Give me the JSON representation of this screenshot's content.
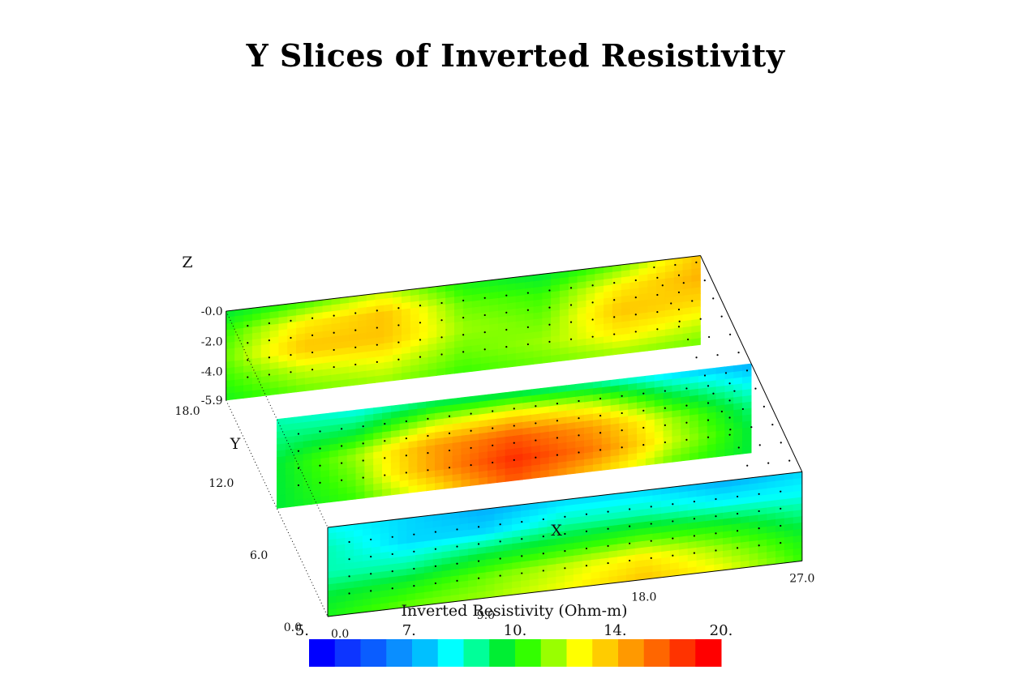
{
  "chart_data": {
    "type": "heatmap",
    "title": "Y Slices of Inverted Resistivity",
    "xlabel": "X",
    "ylabel": "Y",
    "zlabel": "Z",
    "x_ticks": [
      "0.0",
      "9.0",
      "18.0",
      "27.0"
    ],
    "y_ticks": [
      "0.0",
      "6.0",
      "12.0",
      "18.0"
    ],
    "z_ticks": [
      "-0.0",
      "-2.0",
      "-4.0",
      "-5.9"
    ],
    "xlim": [
      0,
      27
    ],
    "ylim": [
      0,
      18
    ],
    "zlim": [
      -5.9,
      0
    ],
    "slices": [
      {
        "y": 18,
        "x": [
          0,
          4.5,
          9,
          13.5,
          18,
          22.5,
          27
        ],
        "z": [
          0,
          -1.5,
          -3,
          -4.5,
          -5.9
        ],
        "values": [
          [
            9.5,
            10.5,
            12,
            10,
            9.5,
            11,
            14
          ],
          [
            10.5,
            13,
            14,
            11,
            10.5,
            13,
            14.5
          ],
          [
            11,
            14,
            14,
            11.5,
            11,
            14,
            13.5
          ],
          [
            10.5,
            12,
            12.5,
            11,
            11.5,
            13,
            12
          ],
          [
            10,
            11,
            11.5,
            10.5,
            11,
            11.5,
            11
          ]
        ]
      },
      {
        "y": 9,
        "x": [
          0,
          4.5,
          9,
          13.5,
          18,
          22.5,
          27
        ],
        "z": [
          0,
          -1.5,
          -3,
          -4.5,
          -5.9
        ],
        "values": [
          [
            8.5,
            8,
            9,
            9,
            8.5,
            7.5,
            7
          ],
          [
            9,
            9.5,
            12,
            13,
            12,
            9.5,
            8
          ],
          [
            9.5,
            11.5,
            15,
            17,
            15,
            11.5,
            9
          ],
          [
            9.5,
            11,
            15,
            18.5,
            16,
            12,
            9.5
          ],
          [
            9.5,
            10.5,
            13,
            17,
            14,
            11,
            9.5
          ]
        ]
      },
      {
        "y": 0,
        "x": [
          0,
          4.5,
          9,
          13.5,
          18,
          22.5,
          27
        ],
        "z": [
          0,
          -1.5,
          -3,
          -4.5,
          -5.9
        ],
        "values": [
          [
            8,
            7.5,
            7,
            7.5,
            7.5,
            7,
            7.5
          ],
          [
            8.5,
            7.5,
            7.5,
            8.5,
            8.5,
            8,
            8
          ],
          [
            8.5,
            8.5,
            9.5,
            10,
            10.5,
            10,
            9
          ],
          [
            9.5,
            10,
            11,
            12,
            13,
            11.5,
            10
          ],
          [
            10,
            11,
            11.5,
            12.5,
            14,
            12.5,
            10.5
          ]
        ]
      }
    ],
    "colorbar": {
      "title": "Inverted Resistivity (Ohm-m)",
      "min": 5,
      "max": 20,
      "scale": "log",
      "tick_labels": [
        "5.",
        "7.",
        "10.",
        "14.",
        "20."
      ],
      "colors": [
        "#0000ff",
        "#0d35ff",
        "#0a5dff",
        "#0a8eff",
        "#00c0ff",
        "#00ffff",
        "#00ff99",
        "#00ee33",
        "#33ff00",
        "#99ff00",
        "#ffff00",
        "#ffcc00",
        "#ff9900",
        "#ff6600",
        "#ff3300",
        "#ff0000"
      ]
    },
    "grid": false,
    "legend": "bottom"
  }
}
